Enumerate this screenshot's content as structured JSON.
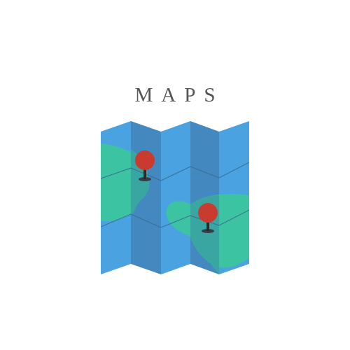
{
  "logo": {
    "title": "MAPS",
    "icon": "folded-map-icon",
    "pin_icon": "location-pin-icon"
  },
  "colors": {
    "panel_light": "#4aa3e0",
    "panel_dark": "#4388bf",
    "land": "#3cc4a2",
    "land_shadow": "#3aa6a1",
    "pin_head": "#c93a2f",
    "pin_needle": "#2b2b2b",
    "pin_shadow": "#333f48",
    "text": "#555555"
  }
}
